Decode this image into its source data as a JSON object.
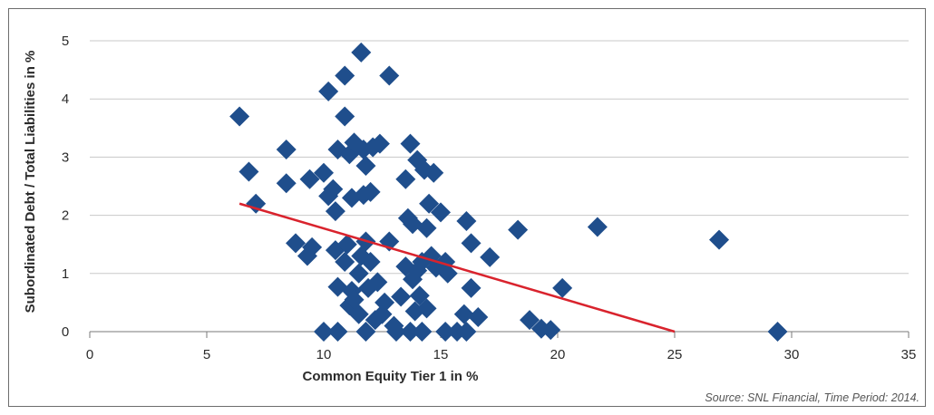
{
  "chart_data": {
    "type": "scatter",
    "xlabel": "Common Equity Tier 1 in %",
    "ylabel": "Subordinated Debt / Total Liabilities in %",
    "source": "Source: SNL Financial, Time Period: 2014.",
    "xlim": [
      0,
      35
    ],
    "ylim": [
      0,
      5
    ],
    "xticks": [
      0,
      5,
      10,
      15,
      20,
      25,
      30,
      35
    ],
    "yticks": [
      0,
      1,
      2,
      3,
      4,
      5
    ],
    "grid": "horizontal",
    "marker": "diamond",
    "colors": {
      "points": "#1f4e8c",
      "trend": "#d9232d",
      "grid": "#c8c8c8",
      "axis": "#7a7a7a"
    },
    "points": [
      {
        "x": 6.4,
        "y": 3.7
      },
      {
        "x": 6.8,
        "y": 2.75
      },
      {
        "x": 7.1,
        "y": 2.2
      },
      {
        "x": 8.4,
        "y": 3.13
      },
      {
        "x": 8.4,
        "y": 2.55
      },
      {
        "x": 8.8,
        "y": 1.52
      },
      {
        "x": 9.3,
        "y": 1.3
      },
      {
        "x": 9.4,
        "y": 2.62
      },
      {
        "x": 9.5,
        "y": 1.45
      },
      {
        "x": 10.0,
        "y": 2.73
      },
      {
        "x": 10.0,
        "y": 0.0
      },
      {
        "x": 10.2,
        "y": 4.13
      },
      {
        "x": 10.2,
        "y": 2.33
      },
      {
        "x": 10.4,
        "y": 2.45
      },
      {
        "x": 10.5,
        "y": 1.4
      },
      {
        "x": 10.5,
        "y": 2.07
      },
      {
        "x": 10.6,
        "y": 0.77
      },
      {
        "x": 10.6,
        "y": 3.13
      },
      {
        "x": 10.6,
        "y": 0.0
      },
      {
        "x": 10.9,
        "y": 4.4
      },
      {
        "x": 10.9,
        "y": 3.7
      },
      {
        "x": 10.9,
        "y": 1.2
      },
      {
        "x": 11.0,
        "y": 1.5
      },
      {
        "x": 11.1,
        "y": 3.05
      },
      {
        "x": 11.1,
        "y": 0.45
      },
      {
        "x": 11.2,
        "y": 2.3
      },
      {
        "x": 11.2,
        "y": 0.7
      },
      {
        "x": 11.3,
        "y": 3.25
      },
      {
        "x": 11.3,
        "y": 0.55
      },
      {
        "x": 11.5,
        "y": 1.0
      },
      {
        "x": 11.5,
        "y": 0.3
      },
      {
        "x": 11.6,
        "y": 4.8
      },
      {
        "x": 11.6,
        "y": 1.3
      },
      {
        "x": 11.7,
        "y": 3.13
      },
      {
        "x": 11.7,
        "y": 2.35
      },
      {
        "x": 11.8,
        "y": 2.85
      },
      {
        "x": 11.8,
        "y": 1.55
      },
      {
        "x": 11.8,
        "y": 0.0
      },
      {
        "x": 11.9,
        "y": 0.75
      },
      {
        "x": 12.0,
        "y": 2.4
      },
      {
        "x": 12.0,
        "y": 1.2
      },
      {
        "x": 12.1,
        "y": 3.17
      },
      {
        "x": 12.2,
        "y": 0.2
      },
      {
        "x": 12.3,
        "y": 0.85
      },
      {
        "x": 12.4,
        "y": 3.23
      },
      {
        "x": 12.5,
        "y": 0.3
      },
      {
        "x": 12.6,
        "y": 0.5
      },
      {
        "x": 12.8,
        "y": 4.4
      },
      {
        "x": 12.8,
        "y": 1.55
      },
      {
        "x": 13.0,
        "y": 0.1
      },
      {
        "x": 13.1,
        "y": 0.0
      },
      {
        "x": 13.3,
        "y": 0.6
      },
      {
        "x": 13.5,
        "y": 2.62
      },
      {
        "x": 13.5,
        "y": 1.12
      },
      {
        "x": 13.6,
        "y": 1.95
      },
      {
        "x": 13.7,
        "y": 3.23
      },
      {
        "x": 13.7,
        "y": 0.0
      },
      {
        "x": 13.8,
        "y": 1.85
      },
      {
        "x": 13.8,
        "y": 0.9
      },
      {
        "x": 13.9,
        "y": 0.35
      },
      {
        "x": 14.0,
        "y": 2.95
      },
      {
        "x": 14.0,
        "y": 1.05
      },
      {
        "x": 14.1,
        "y": 0.62
      },
      {
        "x": 14.2,
        "y": 1.2
      },
      {
        "x": 14.2,
        "y": 0.0
      },
      {
        "x": 14.3,
        "y": 2.78
      },
      {
        "x": 14.4,
        "y": 1.78
      },
      {
        "x": 14.4,
        "y": 0.4
      },
      {
        "x": 14.5,
        "y": 2.2
      },
      {
        "x": 14.6,
        "y": 1.3
      },
      {
        "x": 14.7,
        "y": 2.73
      },
      {
        "x": 14.8,
        "y": 1.1
      },
      {
        "x": 15.0,
        "y": 2.05
      },
      {
        "x": 15.2,
        "y": 1.2
      },
      {
        "x": 15.2,
        "y": 0.0
      },
      {
        "x": 15.3,
        "y": 1.0
      },
      {
        "x": 15.7,
        "y": 0.0
      },
      {
        "x": 16.0,
        "y": 0.3
      },
      {
        "x": 16.1,
        "y": 1.9
      },
      {
        "x": 16.1,
        "y": 0.0
      },
      {
        "x": 16.3,
        "y": 1.52
      },
      {
        "x": 16.3,
        "y": 0.75
      },
      {
        "x": 16.6,
        "y": 0.25
      },
      {
        "x": 17.1,
        "y": 1.28
      },
      {
        "x": 18.3,
        "y": 1.75
      },
      {
        "x": 18.8,
        "y": 0.2
      },
      {
        "x": 19.3,
        "y": 0.05
      },
      {
        "x": 19.7,
        "y": 0.03
      },
      {
        "x": 20.2,
        "y": 0.75
      },
      {
        "x": 21.7,
        "y": 1.8
      },
      {
        "x": 26.9,
        "y": 1.58
      },
      {
        "x": 29.4,
        "y": 0.0
      }
    ],
    "trendline": {
      "x": [
        6.4,
        25.0
      ],
      "y": [
        2.2,
        0.0
      ]
    }
  }
}
